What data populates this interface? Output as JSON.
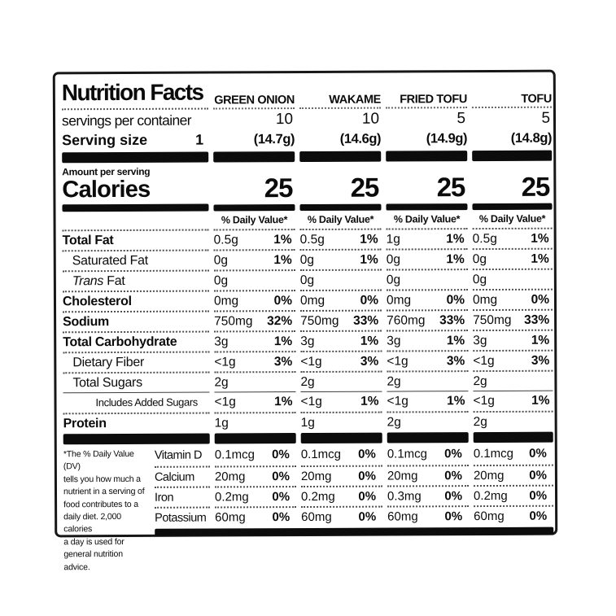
{
  "label": {
    "title": "Nutrition Facts",
    "servings_per_container_label": "servings per container",
    "serving_size_label": "Serving size",
    "serving_size_value": "1",
    "amount_per_serving_label": "Amount per serving",
    "calories_label": "Calories",
    "daily_value_header": "% Daily Value*",
    "columns": [
      {
        "name": "GREEN ONION",
        "servings_per_container": "10",
        "serving_size": "(14.7g)",
        "calories": "25"
      },
      {
        "name": "WAKAME",
        "servings_per_container": "10",
        "serving_size": "(14.6g)",
        "calories": "25"
      },
      {
        "name": "FRIED TOFU",
        "servings_per_container": "5",
        "serving_size": "(14.9g)",
        "calories": "25"
      },
      {
        "name": "TOFU",
        "servings_per_container": "5",
        "serving_size": "(14.8g)",
        "calories": "25"
      }
    ],
    "nutrients": [
      {
        "name": "Total Fat",
        "bold": true,
        "indent": 0,
        "values": [
          {
            "amt": "0.5g",
            "pct": "1%"
          },
          {
            "amt": "0.5g",
            "pct": "1%"
          },
          {
            "amt": "1g",
            "pct": "1%"
          },
          {
            "amt": "0.5g",
            "pct": "1%"
          }
        ]
      },
      {
        "name": "Saturated Fat",
        "bold": false,
        "indent": 1,
        "values": [
          {
            "amt": "0g",
            "pct": "1%"
          },
          {
            "amt": "0g",
            "pct": "1%"
          },
          {
            "amt": "0g",
            "pct": "1%"
          },
          {
            "amt": "0g",
            "pct": "1%"
          }
        ]
      },
      {
        "name_italic": "Trans",
        "name_rest": " Fat",
        "bold": false,
        "indent": 1,
        "values": [
          {
            "amt": "0g",
            "pct": ""
          },
          {
            "amt": "0g",
            "pct": ""
          },
          {
            "amt": "0g",
            "pct": ""
          },
          {
            "amt": "0g",
            "pct": ""
          }
        ]
      },
      {
        "name": "Cholesterol",
        "bold": true,
        "indent": 0,
        "values": [
          {
            "amt": "0mg",
            "pct": "0%"
          },
          {
            "amt": "0mg",
            "pct": "0%"
          },
          {
            "amt": "0mg",
            "pct": "0%"
          },
          {
            "amt": "0mg",
            "pct": "0%"
          }
        ]
      },
      {
        "name": "Sodium",
        "bold": true,
        "indent": 0,
        "values": [
          {
            "amt": "750mg",
            "pct": "32%"
          },
          {
            "amt": "750mg",
            "pct": "33%"
          },
          {
            "amt": "760mg",
            "pct": "33%"
          },
          {
            "amt": "750mg",
            "pct": "33%"
          }
        ]
      },
      {
        "name": "Total Carbohydrate",
        "bold": true,
        "indent": 0,
        "values": [
          {
            "amt": "3g",
            "pct": "1%"
          },
          {
            "amt": "3g",
            "pct": "1%"
          },
          {
            "amt": "3g",
            "pct": "1%"
          },
          {
            "amt": "3g",
            "pct": "1%"
          }
        ]
      },
      {
        "name": "Dietary Fiber",
        "bold": false,
        "indent": 1,
        "values": [
          {
            "amt": "<1g",
            "pct": "3%"
          },
          {
            "amt": "<1g",
            "pct": "3%"
          },
          {
            "amt": "<1g",
            "pct": "3%"
          },
          {
            "amt": "<1g",
            "pct": "3%"
          }
        ]
      },
      {
        "name": "Total Sugars",
        "bold": false,
        "indent": 1,
        "values": [
          {
            "amt": "2g",
            "pct": ""
          },
          {
            "amt": "2g",
            "pct": ""
          },
          {
            "amt": "2g",
            "pct": ""
          },
          {
            "amt": "2g",
            "pct": ""
          }
        ]
      },
      {
        "name": "Includes Added Sugars",
        "bold": false,
        "indent": 2,
        "small": true,
        "solid_top": true,
        "values": [
          {
            "amt": "<1g",
            "pct": "1%"
          },
          {
            "amt": "<1g",
            "pct": "1%"
          },
          {
            "amt": "<1g",
            "pct": "1%"
          },
          {
            "amt": "<1g",
            "pct": "1%"
          }
        ]
      },
      {
        "name": "Protein",
        "bold": true,
        "indent": 0,
        "values": [
          {
            "amt": "1g",
            "pct": ""
          },
          {
            "amt": "1g",
            "pct": ""
          },
          {
            "amt": "2g",
            "pct": ""
          },
          {
            "amt": "2g",
            "pct": ""
          }
        ]
      }
    ],
    "vitamins": [
      {
        "name": "Vitamin D",
        "values": [
          {
            "amt": "0.1mcg",
            "pct": "0%"
          },
          {
            "amt": "0.1mcg",
            "pct": "0%"
          },
          {
            "amt": "0.1mcg",
            "pct": "0%"
          },
          {
            "amt": "0.1mcg",
            "pct": "0%"
          }
        ]
      },
      {
        "name": "Calcium",
        "values": [
          {
            "amt": "20mg",
            "pct": "0%"
          },
          {
            "amt": "20mg",
            "pct": "0%"
          },
          {
            "amt": "20mg",
            "pct": "0%"
          },
          {
            "amt": "20mg",
            "pct": "0%"
          }
        ]
      },
      {
        "name": "Iron",
        "values": [
          {
            "amt": "0.2mg",
            "pct": "0%"
          },
          {
            "amt": "0.2mg",
            "pct": "0%"
          },
          {
            "amt": "0.3mg",
            "pct": "0%"
          },
          {
            "amt": "0.2mg",
            "pct": "0%"
          }
        ]
      },
      {
        "name": "Potassium",
        "values": [
          {
            "amt": "60mg",
            "pct": "0%"
          },
          {
            "amt": "60mg",
            "pct": "0%"
          },
          {
            "amt": "60mg",
            "pct": "0%"
          },
          {
            "amt": "60mg",
            "pct": "0%"
          }
        ]
      }
    ],
    "footnote": "*The % Daily Value (DV)\ntells you how much a\nnutrient in a serving of\nfood contributes to a\ndaily diet. 2,000 calories\na day is used for\ngeneral nutrition advice."
  }
}
